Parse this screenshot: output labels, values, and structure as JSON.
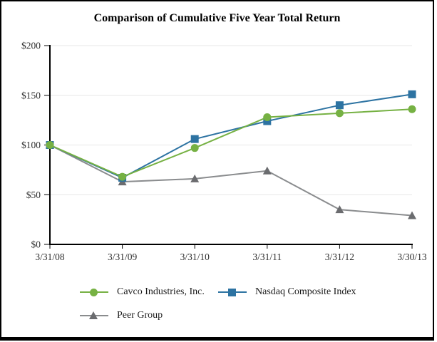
{
  "title": "Comparison of Cumulative Five Year Total Return",
  "chart_data": {
    "type": "line",
    "title": "Comparison of Cumulative Five Year Total Return",
    "x": [
      "3/31/08",
      "3/31/09",
      "3/31/10",
      "3/31/11",
      "3/31/12",
      "3/30/13"
    ],
    "series": [
      {
        "name": "Cavco Industries, Inc.",
        "marker": "circle",
        "color": "#76B143",
        "values": [
          100,
          68,
          97,
          128,
          132,
          136
        ]
      },
      {
        "name": "Nasdaq Composite Index",
        "marker": "square",
        "color": "#2D73A2",
        "values": [
          100,
          67,
          106,
          124,
          140,
          151
        ]
      },
      {
        "name": "Peer Group",
        "marker": "triangle",
        "color": "#6B6C6F",
        "line_color": "#8A8C8E",
        "values": [
          100,
          63,
          66,
          74,
          35,
          29
        ]
      }
    ],
    "xlabel": "",
    "ylabel": "",
    "ylim": [
      0,
      200
    ],
    "ytick_values": [
      0,
      50,
      100,
      150,
      200
    ],
    "ytick_labels": [
      "$0",
      "$50",
      "$100",
      "$150",
      "$200"
    ],
    "grid": true,
    "legend_position": "bottom",
    "colors": {
      "axis": "#000000",
      "grid": "#E7E7E7",
      "tick_text": "#2e2e2e"
    }
  }
}
